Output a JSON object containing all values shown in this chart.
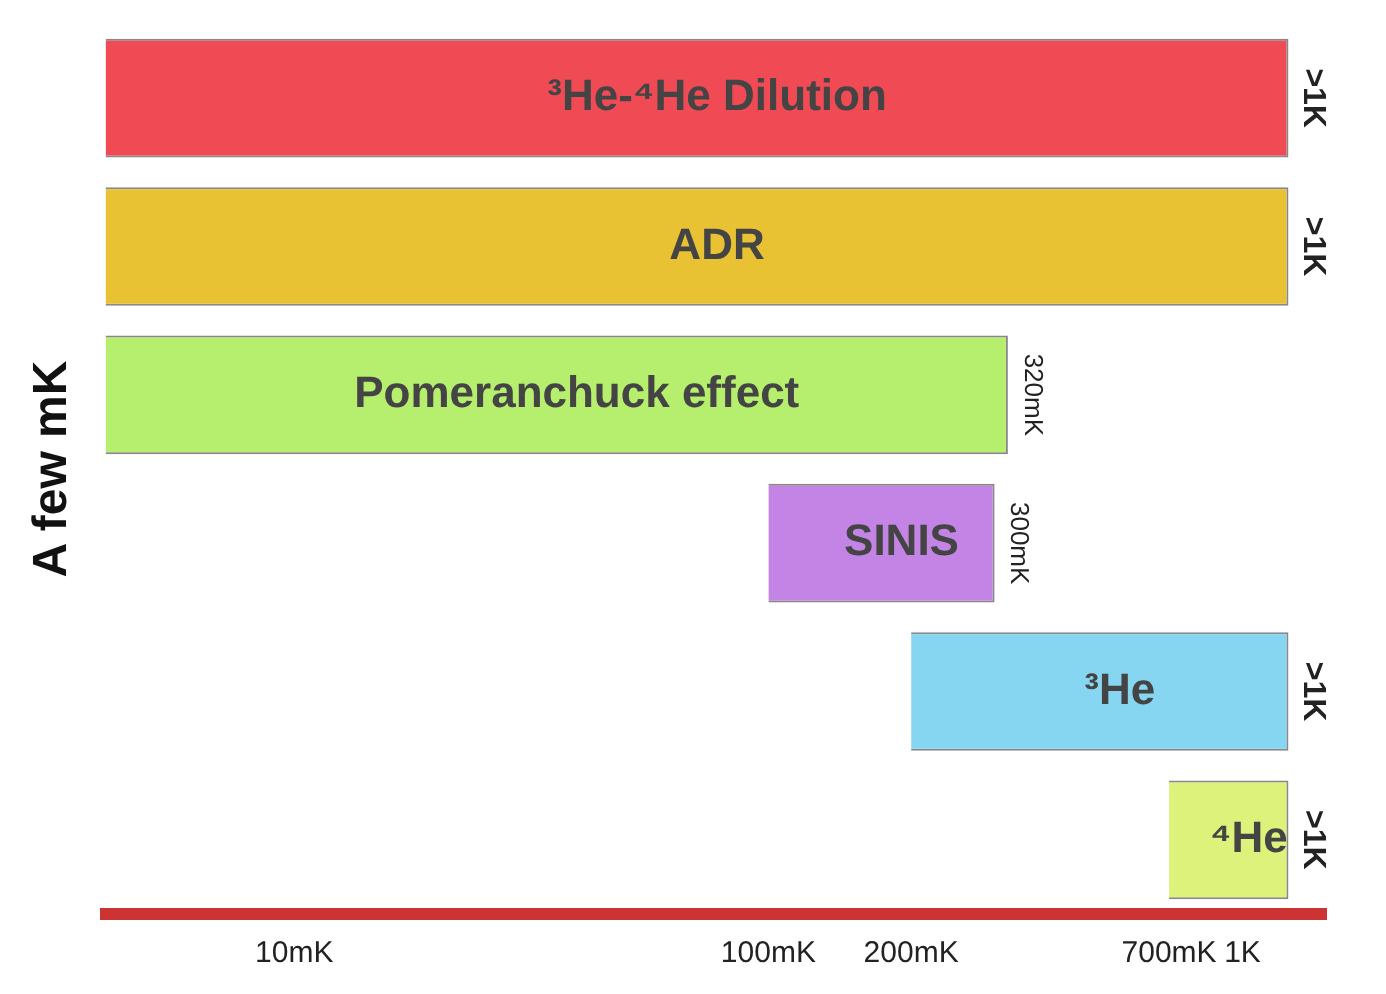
{
  "chart_data": {
    "type": "bar",
    "orientation": "horizontal",
    "ylabel": "A few mK",
    "categories": [
      "³He-⁴He Dilution",
      "ADR",
      "Pomeranchuck effect",
      "SINIS",
      "³He",
      "⁴He"
    ],
    "base": [
      4,
      4,
      4,
      100,
      200,
      700
    ],
    "values": [
      1246,
      1246,
      316,
      200,
      1050,
      550
    ],
    "colors": [
      "#f04a55",
      "#e8c232",
      "#b6ee6e",
      "#c384e6",
      "#86d6f2",
      "#dcf27a"
    ],
    "value_labels": [
      ">1K",
      ">1K",
      "320mK",
      "300mK",
      ">1K",
      ">1K"
    ],
    "log": "x",
    "xlim": [
      4,
      1500
    ],
    "xticks": [
      {
        "value": 10,
        "label": "10mK"
      },
      {
        "value": 100,
        "label": "100mK"
      },
      {
        "value": 200,
        "label": "200mK"
      },
      {
        "value": 700,
        "label": "700mK"
      },
      {
        "value": 1000,
        "label": "1K"
      }
    ],
    "grid": false,
    "legend": false
  }
}
